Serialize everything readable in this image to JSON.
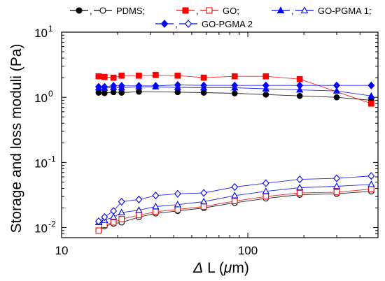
{
  "chart_data": {
    "type": "line",
    "title": "",
    "xlabel": "Δ L (μm)",
    "xlabel_parts": {
      "delta": "Δ",
      "letter": " L (",
      "mu": "μ",
      "unit": "m)"
    },
    "ylabel": "Storage and loss moduli (Pa)",
    "xscale": "log",
    "yscale": "log",
    "xlim": [
      10,
      500
    ],
    "ylim": [
      0.007,
      10
    ],
    "x_ticks": [
      {
        "value": 10,
        "label": "10"
      },
      {
        "value": 100,
        "label": "100"
      }
    ],
    "y_ticks": [
      {
        "value": 0.01,
        "base": "10",
        "exp": "-2"
      },
      {
        "value": 0.1,
        "base": "10",
        "exp": "-1"
      },
      {
        "value": 1,
        "base": "10",
        "exp": "0"
      },
      {
        "value": 10,
        "base": "10",
        "exp": "1"
      }
    ],
    "grid": false,
    "legend_position": "top",
    "legend_rows": [
      [
        {
          "group": 0,
          "label": "PDMS;"
        },
        {
          "group": 1,
          "label": "GO;"
        },
        {
          "group": 2,
          "label": "GO-PGMA 1;"
        }
      ],
      [
        {
          "group": 3,
          "label": "GO-PGMA 2"
        }
      ]
    ],
    "legend_separator": ",",
    "groups": [
      {
        "color": "#000000",
        "marker": "circle"
      },
      {
        "color": "#ff0000",
        "marker": "square"
      },
      {
        "color": "#0000ff",
        "marker": "triangle"
      },
      {
        "color": "#0000ff",
        "marker": "diamond"
      }
    ],
    "series": [
      {
        "group": 0,
        "filled": true,
        "x": [
          15.8,
          17,
          19,
          21,
          26,
          42,
          58,
          85,
          125,
          190,
          300,
          460
        ],
        "y": [
          1.18,
          1.16,
          1.2,
          1.18,
          1.22,
          1.2,
          1.18,
          1.15,
          1.1,
          1.05,
          1.0,
          0.9
        ]
      },
      {
        "group": 0,
        "filled": false,
        "x": [
          15.8,
          17,
          19,
          21,
          26,
          32,
          42,
          58,
          85,
          125,
          190,
          300,
          460
        ],
        "y": [
          0.009,
          0.0105,
          0.0115,
          0.012,
          0.0145,
          0.0165,
          0.018,
          0.02,
          0.024,
          0.028,
          0.032,
          0.033,
          0.036
        ]
      },
      {
        "group": 1,
        "filled": true,
        "x": [
          15.8,
          17,
          19,
          21,
          26,
          32,
          42,
          58,
          85,
          125,
          190,
          460
        ],
        "y": [
          2.1,
          2.05,
          2.0,
          2.15,
          2.15,
          2.2,
          2.15,
          2.0,
          2.1,
          2.1,
          1.9,
          0.8
        ]
      },
      {
        "group": 1,
        "filled": false,
        "x": [
          15.8,
          17,
          19,
          21,
          26,
          32,
          42,
          58,
          85,
          125,
          190,
          300,
          460
        ],
        "y": [
          0.009,
          0.011,
          0.012,
          0.0135,
          0.0155,
          0.0175,
          0.019,
          0.021,
          0.0255,
          0.03,
          0.034,
          0.035,
          0.039
        ]
      },
      {
        "group": 2,
        "filled": true,
        "x": [
          15.8,
          17,
          19,
          21,
          26,
          32,
          42,
          58,
          85,
          125,
          190,
          300,
          460
        ],
        "y": [
          1.4,
          1.38,
          1.42,
          1.4,
          1.45,
          1.45,
          1.42,
          1.4,
          1.4,
          1.35,
          1.3,
          1.25,
          1.05
        ]
      },
      {
        "group": 2,
        "filled": false,
        "x": [
          15.8,
          17,
          19,
          21,
          26,
          32,
          42,
          58,
          85,
          125,
          190,
          300,
          460
        ],
        "y": [
          0.012,
          0.013,
          0.0145,
          0.017,
          0.0185,
          0.021,
          0.0225,
          0.025,
          0.031,
          0.036,
          0.041,
          0.043,
          0.046
        ]
      },
      {
        "group": 3,
        "filled": true,
        "x": [
          15.8,
          17,
          19,
          21,
          26,
          32,
          42,
          58,
          85,
          125,
          190,
          300,
          460
        ],
        "y": [
          1.45,
          1.45,
          1.5,
          1.5,
          1.5,
          1.5,
          1.55,
          1.52,
          1.52,
          1.52,
          1.52,
          1.52,
          1.52
        ]
      },
      {
        "group": 3,
        "filled": false,
        "x": [
          15.8,
          17,
          19,
          21,
          26,
          32,
          42,
          58,
          85,
          125,
          190,
          300,
          460
        ],
        "y": [
          0.0125,
          0.0145,
          0.018,
          0.025,
          0.027,
          0.031,
          0.033,
          0.034,
          0.042,
          0.048,
          0.055,
          0.057,
          0.062
        ]
      }
    ]
  }
}
